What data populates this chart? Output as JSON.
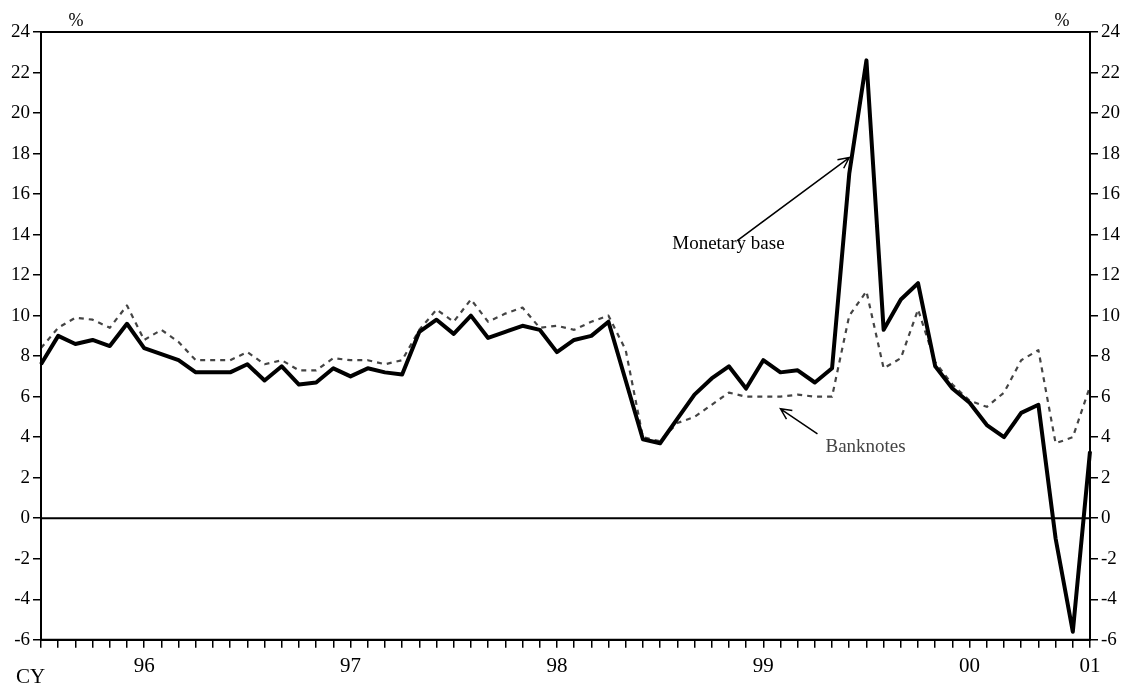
{
  "chart_data": {
    "type": "line",
    "xlabel": "CY",
    "ylabel": "%",
    "y2label": "%",
    "categories": [
      null,
      null,
      null,
      null,
      null,
      null,
      "96",
      null,
      null,
      null,
      null,
      null,
      null,
      null,
      null,
      null,
      null,
      null,
      "97",
      null,
      null,
      null,
      null,
      null,
      null,
      null,
      null,
      null,
      null,
      null,
      "98",
      null,
      null,
      null,
      null,
      null,
      null,
      null,
      null,
      null,
      null,
      null,
      "99",
      null,
      null,
      null,
      null,
      null,
      null,
      null,
      null,
      null,
      null,
      null,
      "00",
      null,
      null,
      null,
      null,
      null,
      null,
      "01"
    ],
    "series": [
      {
        "name": "Monetary base",
        "color": "#000000",
        "line_style": "solid",
        "values": [
          7.6,
          9.0,
          8.6,
          8.8,
          8.5,
          9.6,
          8.4,
          8.1,
          7.8,
          7.2,
          7.2,
          7.2,
          7.6,
          6.8,
          7.5,
          6.6,
          6.7,
          7.4,
          7.0,
          7.4,
          7.2,
          7.1,
          9.2,
          9.8,
          9.1,
          10.0,
          8.9,
          9.2,
          9.5,
          9.3,
          8.2,
          8.8,
          9.0,
          9.7,
          6.8,
          3.9,
          3.7,
          4.9,
          6.1,
          6.9,
          7.5,
          6.4,
          7.8,
          7.2,
          7.3,
          6.7,
          7.4,
          17.0,
          22.6,
          9.3,
          10.8,
          11.6,
          7.5,
          6.4,
          5.7,
          4.6,
          4.0,
          5.2,
          5.6,
          -1.0,
          -5.6,
          3.3
        ]
      },
      {
        "name": "Banknotes",
        "color": "#444444",
        "line_style": "dashed",
        "values": [
          8.4,
          9.4,
          9.9,
          9.8,
          9.4,
          10.5,
          8.8,
          9.3,
          8.7,
          7.8,
          7.8,
          7.8,
          8.2,
          7.6,
          7.8,
          7.3,
          7.3,
          7.9,
          7.8,
          7.8,
          7.6,
          7.8,
          9.3,
          10.3,
          9.7,
          10.8,
          9.7,
          10.1,
          10.4,
          9.4,
          9.5,
          9.3,
          9.7,
          10.0,
          8.3,
          4.0,
          3.8,
          4.7,
          5.0,
          5.6,
          6.2,
          6.0,
          6.0,
          6.0,
          6.1,
          6.0,
          6.0,
          10.0,
          11.2,
          7.4,
          7.9,
          10.3,
          7.7,
          6.6,
          5.8,
          5.5,
          6.2,
          7.8,
          8.3,
          3.7,
          4.0,
          6.5
        ]
      }
    ],
    "ylim": [
      -6,
      24
    ],
    "yticks": [
      -6,
      -4,
      -2,
      0,
      2,
      4,
      6,
      8,
      10,
      12,
      14,
      16,
      18,
      20,
      22,
      24
    ],
    "y2lim": [
      -6,
      24
    ],
    "y2ticks": [
      -6,
      -4,
      -2,
      0,
      2,
      4,
      6,
      8,
      10,
      12,
      14,
      16,
      18,
      20,
      22,
      24
    ],
    "ref_lines": [
      {
        "axis": "y",
        "value": 0,
        "color": "#000000",
        "line_style": "solid"
      }
    ],
    "grid": false,
    "legend": false,
    "marker": "none"
  }
}
